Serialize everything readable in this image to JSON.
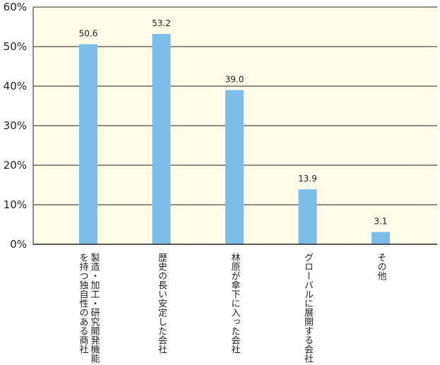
{
  "chart_data": {
    "type": "bar",
    "categories": [
      [
        "製造・加工・研究開発機能",
        "を持つ独自性のある商社"
      ],
      [
        "歴史の長い安定した会社"
      ],
      [
        "林原が傘下に入った会社"
      ],
      [
        "グローバルに展開する会社"
      ],
      [
        "その他"
      ]
    ],
    "values": [
      50.6,
      53.2,
      39.0,
      13.9,
      3.1
    ],
    "value_labels": [
      "50.6",
      "53.2",
      "39.0",
      "13.9",
      "3.1"
    ],
    "y_ticks": [
      {
        "value": 0,
        "label": "0%"
      },
      {
        "value": 10,
        "label": "10%"
      },
      {
        "value": 20,
        "label": "20%"
      },
      {
        "value": 30,
        "label": "30%"
      },
      {
        "value": 40,
        "label": "40%"
      },
      {
        "value": 50,
        "label": "50%"
      },
      {
        "value": 60,
        "label": "60%"
      }
    ],
    "ylim": [
      0,
      60
    ],
    "grid": true,
    "title": "",
    "xlabel": "",
    "ylabel": "",
    "colors": {
      "bar": "#7dbde9",
      "plot_background": "#fefce6",
      "gridline": "#231f20",
      "axis": "#231f20",
      "text": "#231f20"
    }
  }
}
